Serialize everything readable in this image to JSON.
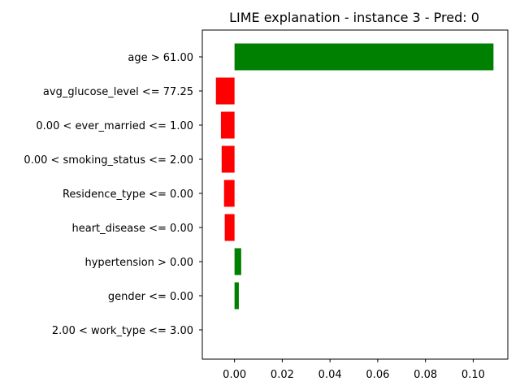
{
  "chart_data": {
    "type": "bar",
    "orientation": "horizontal",
    "title": "LIME explanation - instance 3 - Pred: 0",
    "xlabel": "",
    "ylabel": "",
    "categories": [
      "age > 61.00",
      "avg_glucose_level <= 77.25",
      "0.00 < ever_married <= 1.00",
      "0.00 < smoking_status <= 2.00",
      "Residence_type <= 0.00",
      "heart_disease <= 0.00",
      "hypertension > 0.00",
      "gender <= 0.00",
      "2.00 < work_type <= 3.00"
    ],
    "values": [
      0.1085,
      -0.0078,
      -0.0057,
      -0.0054,
      -0.0044,
      -0.0041,
      0.0028,
      0.0018,
      0.0
    ],
    "colors": {
      "positive": "#008000",
      "negative": "#ff0000"
    },
    "xlim": [
      -0.0135,
      0.1145
    ],
    "xticks": [
      0.0,
      0.02,
      0.04,
      0.06,
      0.08,
      0.1
    ],
    "xtick_labels": [
      "0.00",
      "0.02",
      "0.04",
      "0.06",
      "0.08",
      "0.10"
    ],
    "grid": false,
    "legend": "none"
  }
}
